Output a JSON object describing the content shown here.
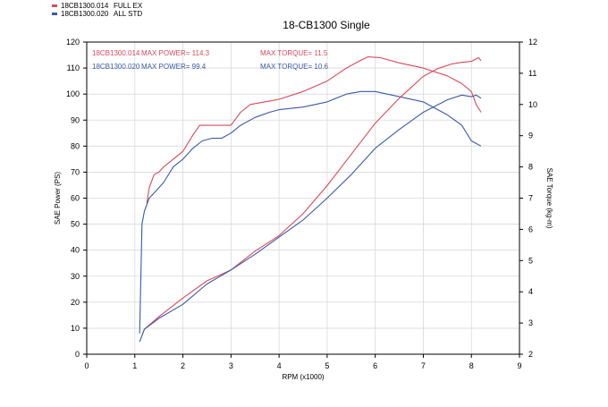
{
  "chart_data": {
    "type": "line",
    "title": "18-CB1300 Single",
    "xlabel": "RPM (x1000)",
    "ylabel_left": "SAE Power (PS)",
    "ylabel_right": "SAE Torque (kg-m)",
    "xlim": [
      0,
      9
    ],
    "ylim_left": [
      0,
      120
    ],
    "ylim_right": [
      2,
      12
    ],
    "x_ticks": [
      "0",
      "1",
      "2",
      "3",
      "4",
      "5",
      "6",
      "7",
      "8",
      "9"
    ],
    "y_ticks_left": [
      "0",
      "10",
      "20",
      "30",
      "40",
      "50",
      "60",
      "70",
      "80",
      "90",
      "100",
      "110",
      "120"
    ],
    "y_ticks_right": [
      "2",
      "3",
      "4",
      "5",
      "6",
      "7",
      "8",
      "9",
      "10",
      "11",
      "12"
    ],
    "grid": true,
    "legend": [
      {
        "run": "18CB1300.014",
        "label": "FULL EX",
        "color": "#d94a5a"
      },
      {
        "run": "18CB1300.020",
        "label": "ALL STD",
        "color": "#3b5aa8"
      }
    ],
    "annotations": [
      {
        "text": "18CB1300.014",
        "color": "#d94a5a"
      },
      {
        "text": "MAX POWER= 114.3",
        "color": "#d94a5a"
      },
      {
        "text": "MAX TORQUE= 11.5",
        "color": "#d94a5a"
      },
      {
        "text": "18CB1300.020",
        "color": "#3b5aa8"
      },
      {
        "text": "MAX POWER= 99.4",
        "color": "#3b5aa8"
      },
      {
        "text": "MAX TORQUE= 10.6",
        "color": "#3b5aa8"
      }
    ],
    "series": [
      {
        "axis": "left",
        "color": "#d94a5a",
        "x": [
          1.25,
          1.3,
          1.4,
          1.5,
          1.6,
          1.8,
          2.0,
          2.2,
          2.35,
          2.5,
          2.7,
          3.0,
          3.2,
          3.4,
          3.7,
          4.0,
          4.5,
          5.0,
          5.4,
          5.7,
          5.85,
          6.1,
          6.5,
          7.0,
          7.5,
          7.8,
          8.0,
          8.1,
          8.2
        ],
        "y": [
          58,
          64,
          69,
          70,
          72,
          75,
          78,
          84,
          88,
          88,
          88,
          88,
          93,
          96,
          97,
          98,
          101,
          105,
          110,
          113,
          114.3,
          114,
          112,
          110,
          107,
          104,
          101,
          96,
          93
        ]
      },
      {
        "axis": "left",
        "color": "#3b5aa8",
        "x": [
          1.1,
          1.15,
          1.2,
          1.3,
          1.4,
          1.6,
          1.8,
          2.0,
          2.2,
          2.4,
          2.6,
          2.8,
          3.0,
          3.2,
          3.5,
          3.8,
          4.0,
          4.5,
          5.0,
          5.4,
          5.7,
          6.0,
          6.5,
          7.0,
          7.5,
          7.8,
          8.0,
          8.1,
          8.2
        ],
        "y": [
          8,
          50,
          55,
          60,
          62,
          66,
          72,
          75,
          79,
          82,
          83,
          83,
          85,
          88,
          91,
          93,
          94,
          95,
          97,
          100,
          101,
          101,
          99,
          97,
          92,
          88,
          82,
          81,
          80
        ]
      },
      {
        "axis": "right",
        "color": "#d94a5a",
        "x": [
          1.15,
          1.2,
          1.5,
          2.0,
          2.5,
          3.0,
          3.5,
          4.0,
          4.5,
          5.0,
          5.5,
          6.0,
          6.5,
          7.0,
          7.3,
          7.6,
          7.8,
          8.0,
          8.15,
          8.2
        ],
        "y": [
          2.6,
          2.8,
          3.2,
          3.8,
          4.35,
          4.7,
          5.3,
          5.8,
          6.5,
          7.4,
          8.4,
          9.4,
          10.2,
          10.9,
          11.15,
          11.3,
          11.35,
          11.38,
          11.5,
          11.4
        ]
      },
      {
        "axis": "right",
        "color": "#3b5aa8",
        "x": [
          1.1,
          1.2,
          1.5,
          2.0,
          2.5,
          3.0,
          3.5,
          4.0,
          4.5,
          5.0,
          5.5,
          6.0,
          6.5,
          7.0,
          7.5,
          7.8,
          8.0,
          8.1,
          8.2
        ],
        "y": [
          2.4,
          2.8,
          3.15,
          3.6,
          4.25,
          4.7,
          5.2,
          5.75,
          6.3,
          7.0,
          7.75,
          8.6,
          9.2,
          9.75,
          10.15,
          10.3,
          10.25,
          10.3,
          10.2
        ]
      }
    ]
  }
}
